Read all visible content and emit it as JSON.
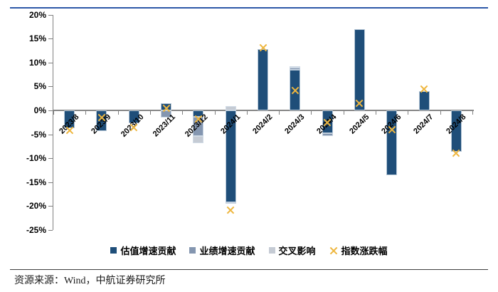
{
  "rules": {
    "top_color": "#2d58a8",
    "bottom_color": "#3f3f3f"
  },
  "footer": {
    "source_text": "资源来源：Wind，中航证券研究所"
  },
  "legend": {
    "items": [
      {
        "label": "估值增速贡献",
        "color": "#1f4e79",
        "marker": "square"
      },
      {
        "label": "业绩增速贡献",
        "color": "#8496b0",
        "marker": "square"
      },
      {
        "label": "交叉影响",
        "color": "#c5cbd4",
        "marker": "square"
      },
      {
        "label": "指数涨跌幅",
        "color": "#eeb63e",
        "marker": "x"
      }
    ]
  },
  "chart_data": {
    "type": "bar",
    "stacked": true,
    "title": "",
    "xlabel": "",
    "ylabel": "",
    "categories": [
      "2023/8",
      "2023/9",
      "2023/10",
      "2023/11",
      "2023/12",
      "2024/1",
      "2024/2",
      "2024/3",
      "2024/4",
      "2024/5",
      "2024/6",
      "2024/7",
      "2024/8"
    ],
    "series": [
      {
        "name": "估值增速贡献",
        "type": "bar",
        "color": "#1f4e79",
        "values": [
          -3.7,
          -4.3,
          -2.7,
          1.5,
          -1.3,
          -19.2,
          12.8,
          8.5,
          -4.7,
          16.9,
          -13.6,
          4.0,
          -8.6
        ]
      },
      {
        "name": "业绩增速贡献",
        "type": "bar",
        "color": "#8496b0",
        "values": [
          0,
          0,
          0,
          -1.5,
          -4.1,
          -0.3,
          0,
          0.4,
          -0.7,
          0,
          0,
          0,
          0
        ]
      },
      {
        "name": "交叉影响",
        "type": "bar",
        "color": "#c5cbd4",
        "values": [
          0,
          0,
          0,
          0,
          -1.5,
          0.9,
          0,
          0.3,
          0,
          0,
          0,
          0,
          0
        ]
      },
      {
        "name": "指数涨跌幅",
        "type": "scatter_x",
        "color": "#eeb63e",
        "values": [
          -4.2,
          -1.5,
          -3.6,
          0.5,
          -1.8,
          -20.9,
          13.1,
          4.2,
          -2.5,
          1.5,
          -4.0,
          4.4,
          -9.0
        ]
      }
    ],
    "ylim": [
      -25,
      20
    ],
    "y_ticks": [
      20,
      15,
      10,
      5,
      0,
      -5,
      -10,
      -15,
      -20,
      -25
    ],
    "y_tick_labels": [
      "20%",
      "15%",
      "10%",
      "5%",
      "0%",
      "-5%",
      "-10%",
      "-15%",
      "-20%",
      "-25%"
    ],
    "grid": false,
    "legend_position": "bottom"
  }
}
